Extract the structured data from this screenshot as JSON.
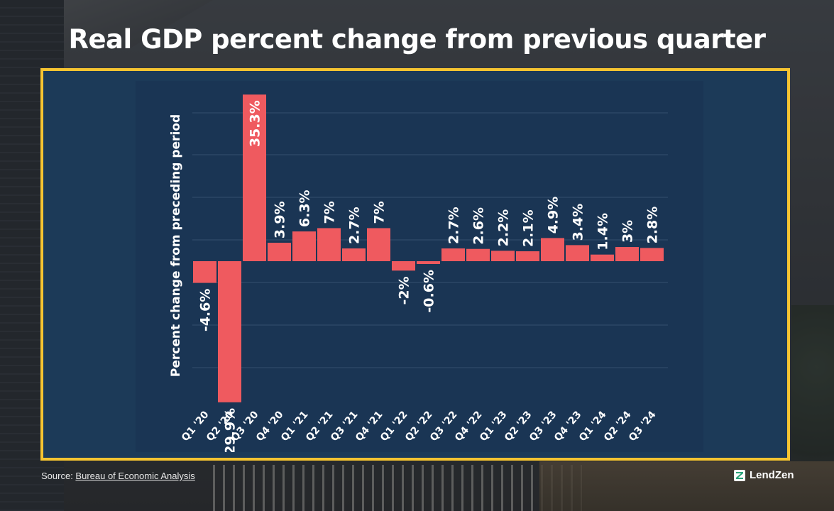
{
  "header": {
    "title": "Real GDP percent change from previous quarter"
  },
  "chart_data": {
    "type": "bar",
    "title": "Real GDP percent change from previous quarter",
    "xlabel": "",
    "ylabel": "Percent change from preceding period",
    "ylim": [
      -30,
      36
    ],
    "grid": true,
    "categories": [
      "Q1 '20",
      "Q2 '20",
      "Q3 '20",
      "Q4 '20",
      "Q1 '21",
      "Q2 '21",
      "Q3 '21",
      "Q4 '21",
      "Q1 '22",
      "Q2 '22",
      "Q3 '22",
      "Q4 '22",
      "Q1 '23",
      "Q2 '23",
      "Q3 '23",
      "Q4 '23",
      "Q1 '24",
      "Q2 '24",
      "Q3 '24"
    ],
    "values": [
      -4.6,
      -29.9,
      35.3,
      3.9,
      6.3,
      7,
      2.7,
      7,
      -2,
      -0.6,
      2.7,
      2.6,
      2.2,
      2.1,
      4.9,
      3.4,
      1.4,
      3,
      2.8
    ],
    "data_labels": [
      "-4.6%",
      "-29.9%",
      "35.3%",
      "3.9%",
      "6.3%",
      "7%",
      "2.7%",
      "7%",
      "-2%",
      "-0.6%",
      "2.7%",
      "2.6%",
      "2.2%",
      "2.1%",
      "4.9%",
      "3.4%",
      "1.4%",
      "3%",
      "2.8%"
    ],
    "colors": {
      "bar": "#ef5a5f",
      "background": "#1a3554",
      "grid": "#34506e",
      "text": "#ffffff"
    }
  },
  "footer": {
    "source_prefix": "Source: ",
    "source_link": "Bureau of Economic Analysis",
    "brand": "LendZen"
  },
  "colors": {
    "frame": "#f5c431",
    "title": "#ffffff"
  }
}
